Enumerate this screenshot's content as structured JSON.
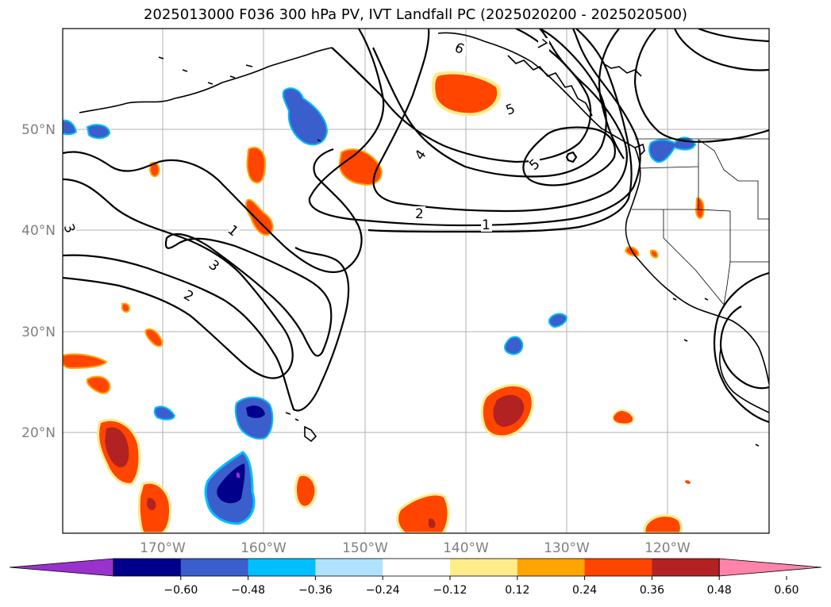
{
  "title": "2025013000 F036 300 hPa PV, IVT Landfall PC (2025020200 - 2025020500)",
  "lat_labels": [
    "50°N",
    "40°N",
    "30°N",
    "20°N"
  ],
  "lon_labels": [
    "170°W",
    "160°W",
    "150°W",
    "140°W",
    "130°W",
    "120°W"
  ],
  "colorbar": {
    "ticks": [
      "−0.60",
      "−0.48",
      "−0.36",
      "−0.24",
      "−0.12",
      "0.12",
      "0.24",
      "0.36",
      "0.48",
      "0.60"
    ],
    "colors": [
      "#9932CC",
      "#00008B",
      "#3A5FCD",
      "#00BFFF",
      "#B0E2FF",
      "#FFFFFF",
      "#FFEC8B",
      "#FFA500",
      "#FF4500",
      "#B22222",
      "#FF83AA"
    ]
  },
  "contour_labels": [
    "6",
    "7",
    "5",
    "5",
    "4",
    "2",
    "1",
    "1",
    "3",
    "3",
    "2"
  ]
}
